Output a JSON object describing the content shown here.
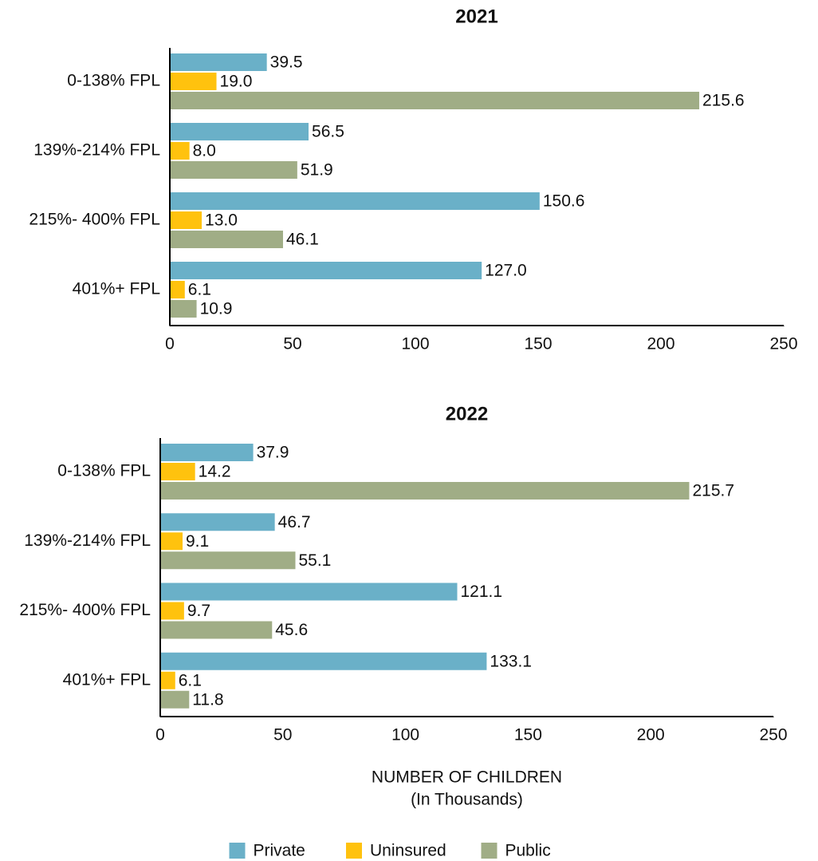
{
  "chart_data": [
    {
      "type": "barh",
      "title": "2021",
      "categories": [
        "0-138% FPL",
        "139%-214% FPL",
        "215%- 400% FPL",
        "401%+ FPL"
      ],
      "series": [
        {
          "color": "#6ab0c8",
          "values": [
            39.5,
            56.5,
            150.6,
            127.0
          ],
          "value_labels": [
            "39.5",
            "56.5",
            "150.6",
            "127.0"
          ]
        },
        {
          "color": "#ffc20e",
          "values": [
            19.0,
            8.0,
            13.0,
            6.1
          ],
          "value_labels": [
            "19.0",
            "8.0",
            "13.0",
            "6.1"
          ]
        },
        {
          "color": "#a0ad86",
          "values": [
            215.6,
            51.9,
            46.1,
            10.9
          ]
        }
      ],
      "xlim": [
        0,
        250
      ],
      "xticks": [
        0,
        50,
        100,
        150,
        200,
        250
      ]
    },
    {
      "type": "barh",
      "title": "2022",
      "categories": [
        "0-138% FPL",
        "139%-214% FPL",
        "215%- 400% FPL",
        "401%+ FPL"
      ],
      "series": [
        {
          "name": "Private",
          "color": "#6ab0c8",
          "values": [
            37.9,
            46.7,
            121.1,
            133.1
          ]
        },
        {
          "name": "Uninsured",
          "color": "#ffc20e",
          "values": [
            14.2,
            9.1,
            9.7,
            6.1
          ]
        },
        {
          "name": "Public",
          "color": "#a0ad86",
          "values": [
            215.7,
            55.1,
            45.6,
            11.8
          ]
        }
      ],
      "xlim": [
        0,
        250
      ],
      "xticks": [
        0,
        50,
        100,
        150,
        200,
        250
      ],
      "xlabel": [
        "NUMBER OF CHILDREN",
        "(In Thousands)"
      ],
      "legend": "bottom"
    }
  ]
}
